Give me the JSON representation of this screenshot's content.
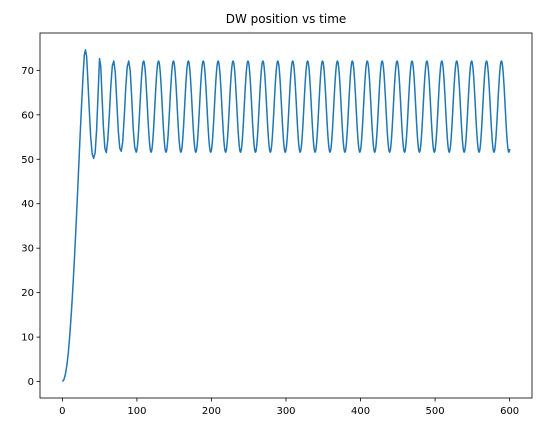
{
  "chart_data": {
    "type": "line",
    "title": "DW position vs time",
    "xlabel": "",
    "ylabel": "",
    "xlim": [
      -30,
      630
    ],
    "ylim": [
      -3.7,
      78.4
    ],
    "xticks": [
      0,
      100,
      200,
      300,
      400,
      500,
      600
    ],
    "xtick_labels": [
      "0",
      "100",
      "200",
      "300",
      "400",
      "500",
      "600"
    ],
    "yticks": [
      0,
      10,
      20,
      30,
      40,
      50,
      60,
      70
    ],
    "ytick_labels": [
      "0",
      "10",
      "20",
      "30",
      "40",
      "50",
      "60",
      "70"
    ],
    "grid": false,
    "legend": false,
    "series": [
      {
        "color": "#1f77b4",
        "points": [
          [
            0,
            0
          ],
          [
            2,
            0.4
          ],
          [
            4,
            1.6
          ],
          [
            6,
            3.6
          ],
          [
            8,
            6.5
          ],
          [
            10,
            10.5
          ],
          [
            12,
            15.3
          ],
          [
            14,
            20.8
          ],
          [
            16,
            27
          ],
          [
            18,
            33.8
          ],
          [
            20,
            41
          ],
          [
            22,
            48.5
          ],
          [
            24,
            56
          ],
          [
            26,
            63
          ],
          [
            28,
            69.5
          ],
          [
            29.5,
            73.5
          ],
          [
            31,
            74.6
          ],
          [
            32.5,
            73.2
          ],
          [
            34,
            68.5
          ],
          [
            36,
            61.5
          ],
          [
            38,
            55
          ],
          [
            40,
            51.2
          ],
          [
            42,
            50.2
          ],
          [
            44,
            51.5
          ],
          [
            46,
            56.8
          ],
          [
            48,
            65
          ],
          [
            49.8,
            72.6
          ],
          [
            51.5,
            71
          ],
          [
            53,
            65
          ],
          [
            55,
            57.5
          ],
          [
            57,
            52.5
          ],
          [
            59,
            51.5
          ],
          [
            61,
            54.5
          ],
          [
            63,
            60
          ],
          [
            65,
            66.5
          ],
          [
            67,
            71
          ],
          [
            69,
            72.1
          ],
          [
            71,
            69.5
          ],
          [
            73,
            63
          ],
          [
            75,
            56.5
          ],
          [
            77,
            52.5
          ],
          [
            79,
            51.8
          ],
          [
            81,
            54
          ],
          [
            83,
            59.5
          ],
          [
            85,
            66
          ],
          [
            87,
            70.8
          ],
          [
            89,
            72.1
          ],
          [
            91,
            70
          ],
          [
            93,
            64
          ],
          [
            95,
            57
          ],
          [
            97,
            52.8
          ],
          [
            99,
            51.6
          ]
        ],
        "oscillation": {
          "x_start": 99,
          "x_end": 600,
          "period": 20,
          "min": 51.6,
          "max": 72.1,
          "last_value": 52.3
        }
      }
    ]
  }
}
